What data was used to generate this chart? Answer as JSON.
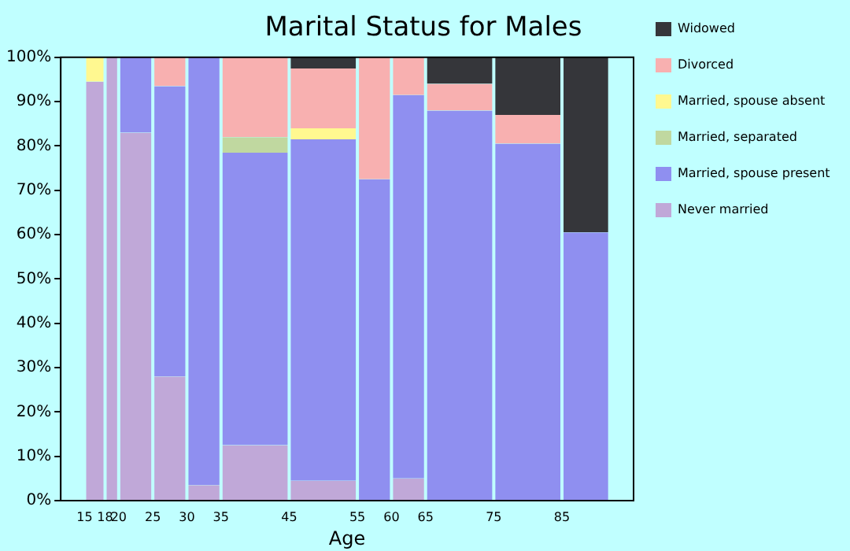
{
  "chart_data": {
    "type": "bar",
    "title": "Marital Status for Males",
    "xlabel": "Age",
    "stacked": true,
    "x": [
      16.5,
      19,
      22.5,
      27.5,
      32.5,
      40,
      50,
      57.5,
      62.5,
      70,
      80,
      88.5
    ],
    "xlim": [
      15,
      92
    ],
    "xticks": [
      15,
      18,
      20,
      25,
      30,
      35,
      45,
      55,
      60,
      65,
      75,
      85
    ],
    "ylim": [
      0,
      100
    ],
    "yticks": [
      {
        "value": 0,
        "label": "0%"
      },
      {
        "value": 10,
        "label": "10%"
      },
      {
        "value": 20,
        "label": "20%"
      },
      {
        "value": 30,
        "label": "30%"
      },
      {
        "value": 40,
        "label": "40%"
      },
      {
        "value": 50,
        "label": "50%"
      },
      {
        "value": 60,
        "label": "60%"
      },
      {
        "value": 70,
        "label": "70%"
      },
      {
        "value": 80,
        "label": "80%"
      },
      {
        "value": 90,
        "label": "90%"
      },
      {
        "value": 100,
        "label": "100%"
      }
    ],
    "grid": false,
    "legend": "right",
    "series": [
      {
        "name": "Never married",
        "color": "#c0a8d8",
        "values": [
          94.5,
          100,
          83,
          28,
          3.5,
          12.5,
          4.5,
          0,
          5,
          0,
          0,
          0
        ]
      },
      {
        "name": "Married, spouse present",
        "color": "#8f8ff0",
        "values": [
          0,
          0,
          17,
          65.5,
          96.5,
          66,
          77,
          72.5,
          86.5,
          88,
          80.5,
          60.5
        ]
      },
      {
        "name": "Married, separated",
        "color": "#c0d8a0",
        "values": [
          0,
          0,
          0,
          0,
          0,
          3.5,
          0,
          0,
          0,
          0,
          0,
          0
        ]
      },
      {
        "name": "Married, spouse absent",
        "color": "#fff890",
        "values": [
          5.5,
          0,
          0,
          0,
          0,
          0,
          2.5,
          0,
          0,
          0,
          0,
          0
        ]
      },
      {
        "name": "Divorced",
        "color": "#f8b0b0",
        "values": [
          0,
          0,
          0,
          6.5,
          0,
          18,
          13.5,
          27.5,
          8.5,
          6,
          6.5,
          0
        ]
      },
      {
        "name": "Widowed",
        "color": "#35363a",
        "values": [
          0,
          0,
          0,
          0,
          0,
          0,
          2.5,
          0,
          0,
          6,
          13,
          39.5
        ]
      }
    ]
  }
}
